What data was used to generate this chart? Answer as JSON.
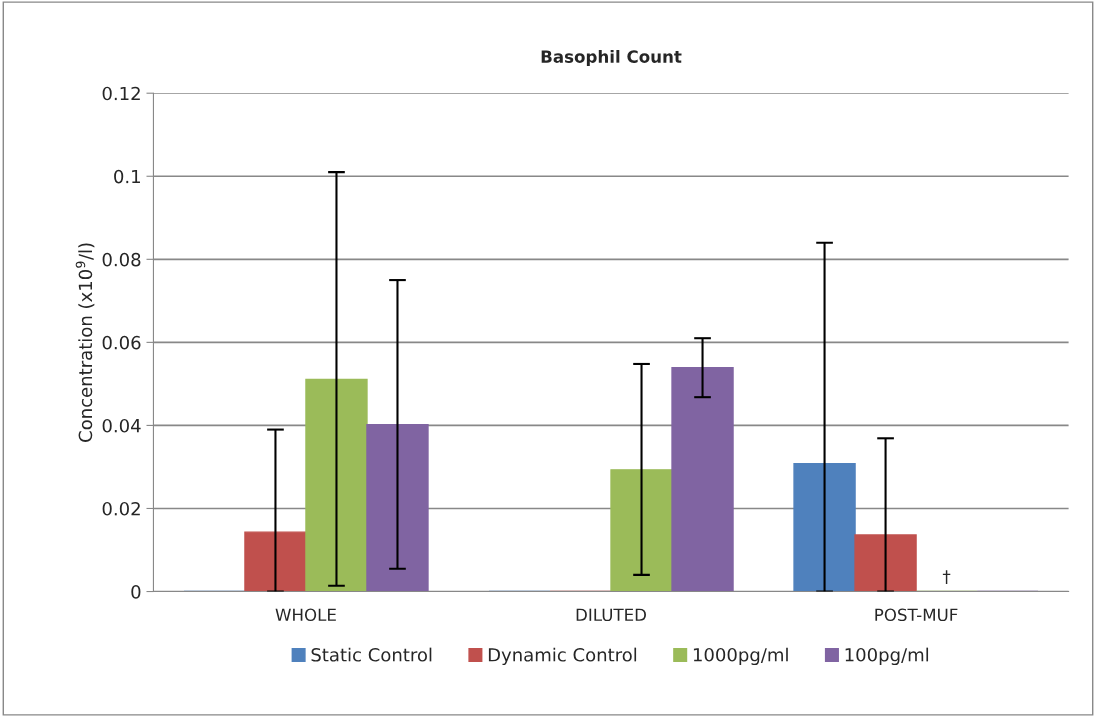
{
  "chart_data": {
    "type": "bar",
    "title": "Basophil Count",
    "ylabel": "Concentration (x10$^{9}$/l)",
    "categories": [
      "WHOLE",
      "DILUTED",
      "POST-MUF"
    ],
    "series": [
      {
        "name": "Static Control",
        "color": "#4f81bd",
        "values": [
          0,
          0,
          0.0308
        ],
        "errors": [
          null,
          null,
          [
            0,
            0.084
          ]
        ]
      },
      {
        "name": "Dynamic Control",
        "color": "#c0504d",
        "values": [
          0.0143,
          0,
          0.0136
        ],
        "errors": [
          [
            0,
            0.039
          ],
          null,
          [
            0,
            0.0369
          ]
        ]
      },
      {
        "name": "1000pg/ml",
        "color": "#9bbb59",
        "values": [
          0.0511,
          0.0293,
          0
        ],
        "errors": [
          [
            0.0014,
            0.101
          ],
          [
            0.004,
            0.0548
          ],
          null
        ]
      },
      {
        "name": "100pg/ml",
        "color": "#8064a2",
        "values": [
          0.0402,
          0.0539,
          0
        ],
        "errors": [
          [
            0.0055,
            0.075
          ],
          [
            0.0468,
            0.061
          ],
          null
        ]
      }
    ],
    "annotations": [
      {
        "text": "†",
        "x": "POST-MUF",
        "y": 0
      }
    ],
    "ylim": [
      0,
      0.12
    ],
    "yticks": [
      0,
      0.02,
      0.04,
      0.06,
      0.08,
      0.1,
      0.12
    ],
    "grid": "y",
    "legend": "bottom"
  }
}
